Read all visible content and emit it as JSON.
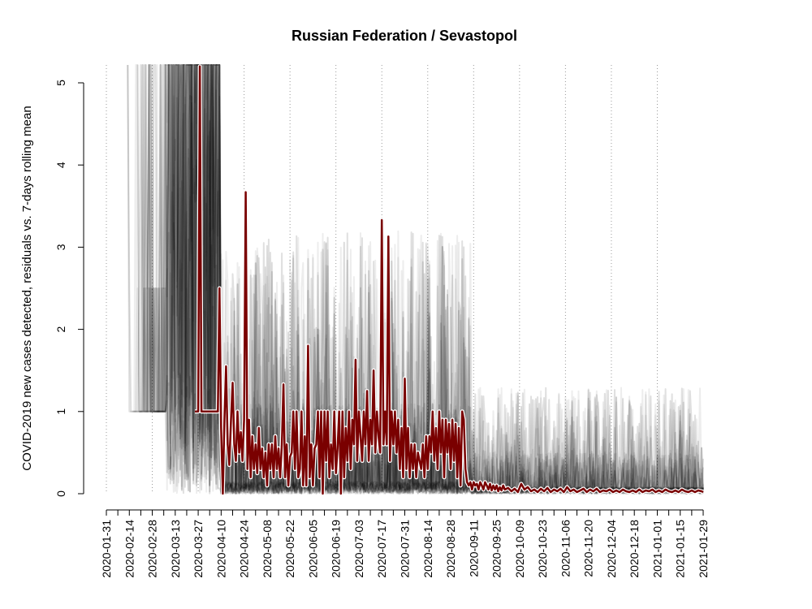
{
  "chart_data": {
    "type": "line",
    "title": "Russian Federation / Sevastopol",
    "xlabel": "",
    "ylabel": "COVID-2019 new cases detected, residuals vs. 7-days rolling mean",
    "x_range": [
      "2020-01-22",
      "2021-01-29"
    ],
    "ylim": [
      0,
      5
    ],
    "y_ticks": [
      0,
      1,
      2,
      3,
      4,
      5
    ],
    "x_tick_labels": [
      "2020-01-31",
      "2020-02-14",
      "2020-02-28",
      "2020-03-13",
      "2020-03-27",
      "2020-04-10",
      "2020-04-24",
      "2020-05-08",
      "2020-05-22",
      "2020-06-05",
      "2020-06-19",
      "2020-07-03",
      "2020-07-17",
      "2020-07-31",
      "2020-08-14",
      "2020-08-28",
      "2020-09-11",
      "2020-09-25",
      "2020-10-09",
      "2020-10-23",
      "2020-11-06",
      "2020-11-20",
      "2020-12-04",
      "2020-12-18",
      "2021-01-01",
      "2021-01-15",
      "2021-01-29"
    ],
    "x_grid_dates": [
      "2020-01-31",
      "2020-02-28",
      "2020-03-27",
      "2020-04-24",
      "2020-05-22",
      "2020-06-19",
      "2020-07-17",
      "2020-08-14",
      "2020-09-11",
      "2020-10-09",
      "2020-11-06",
      "2020-12-04",
      "2021-01-01"
    ],
    "grid": "vertical dotted lines",
    "colors": {
      "highlight": "#7a0000",
      "halo": "#ffffff",
      "background_series": "#000000"
    },
    "highlight_series": {
      "points": [
        [
          "2020-03-25",
          1
        ],
        [
          "2020-03-26",
          1
        ],
        [
          "2020-03-27",
          1
        ],
        [
          "2020-03-28",
          5.2
        ],
        [
          "2020-03-29",
          1
        ],
        [
          "2020-03-30",
          1
        ],
        [
          "2020-03-31",
          1
        ],
        [
          "2020-04-01",
          1
        ],
        [
          "2020-04-02",
          1
        ],
        [
          "2020-04-03",
          1
        ],
        [
          "2020-04-04",
          1
        ],
        [
          "2020-04-05",
          1
        ],
        [
          "2020-04-06",
          1
        ],
        [
          "2020-04-07",
          1
        ],
        [
          "2020-04-08",
          1
        ],
        [
          "2020-04-09",
          2.5
        ],
        [
          "2020-04-10",
          0.8
        ],
        [
          "2020-04-11",
          0
        ],
        [
          "2020-04-12",
          0.9
        ],
        [
          "2020-04-13",
          1.55
        ],
        [
          "2020-04-14",
          0.6
        ],
        [
          "2020-04-15",
          0.35
        ],
        [
          "2020-04-16",
          0.9
        ],
        [
          "2020-04-17",
          1.35
        ],
        [
          "2020-04-18",
          0.6
        ],
        [
          "2020-04-19",
          0.4
        ],
        [
          "2020-04-20",
          1.0
        ],
        [
          "2020-04-21",
          0.5
        ],
        [
          "2020-04-22",
          0.75
        ],
        [
          "2020-04-23",
          0.4
        ],
        [
          "2020-04-24",
          0.9
        ],
        [
          "2020-04-25",
          3.67
        ],
        [
          "2020-04-26",
          0.3
        ],
        [
          "2020-04-27",
          0.9
        ],
        [
          "2020-04-28",
          0.2
        ],
        [
          "2020-04-29",
          0.7
        ],
        [
          "2020-04-30",
          0.3
        ],
        [
          "2020-05-01",
          0.6
        ],
        [
          "2020-05-02",
          0.25
        ],
        [
          "2020-05-03",
          0.8
        ],
        [
          "2020-05-04",
          0.3
        ],
        [
          "2020-05-05",
          0.55
        ],
        [
          "2020-05-06",
          0.2
        ],
        [
          "2020-05-07",
          0.5
        ],
        [
          "2020-05-08",
          0.1
        ],
        [
          "2020-05-09",
          0.6
        ],
        [
          "2020-05-10",
          0.3
        ],
        [
          "2020-05-11",
          0.6
        ],
        [
          "2020-05-12",
          0.2
        ],
        [
          "2020-05-13",
          0.7
        ],
        [
          "2020-05-14",
          0.3
        ],
        [
          "2020-05-15",
          0.55
        ],
        [
          "2020-05-16",
          0.2
        ],
        [
          "2020-05-17",
          0.6
        ],
        [
          "2020-05-18",
          1.33
        ],
        [
          "2020-05-19",
          0.2
        ],
        [
          "2020-05-20",
          0.6
        ],
        [
          "2020-05-21",
          0.1
        ],
        [
          "2020-05-22",
          0.45
        ],
        [
          "2020-05-23",
          0.5
        ],
        [
          "2020-05-24",
          1.0
        ],
        [
          "2020-05-25",
          0.3
        ],
        [
          "2020-05-26",
          1.0
        ],
        [
          "2020-05-27",
          0.2
        ],
        [
          "2020-05-28",
          0.3
        ],
        [
          "2020-05-29",
          1.0
        ],
        [
          "2020-05-30",
          0.1
        ],
        [
          "2020-05-31",
          0.7
        ],
        [
          "2020-06-01",
          0.1
        ],
        [
          "2020-06-02",
          1.8
        ],
        [
          "2020-06-03",
          0.2
        ],
        [
          "2020-06-04",
          0.6
        ],
        [
          "2020-06-05",
          0.1
        ],
        [
          "2020-06-06",
          0.55
        ],
        [
          "2020-06-07",
          0.6
        ],
        [
          "2020-06-08",
          1.0
        ],
        [
          "2020-06-09",
          0.2
        ],
        [
          "2020-06-10",
          1.0
        ],
        [
          "2020-06-11",
          0.0
        ],
        [
          "2020-06-12",
          1.0
        ],
        [
          "2020-06-13",
          0.4
        ],
        [
          "2020-06-14",
          1.0
        ],
        [
          "2020-06-15",
          0.2
        ],
        [
          "2020-06-16",
          0.6
        ],
        [
          "2020-06-17",
          0.3
        ],
        [
          "2020-06-18",
          1.0
        ],
        [
          "2020-06-19",
          0.25
        ],
        [
          "2020-06-20",
          0.55
        ],
        [
          "2020-06-21",
          1.0
        ],
        [
          "2020-06-22",
          0.0
        ],
        [
          "2020-06-23",
          1.0
        ],
        [
          "2020-06-24",
          0.2
        ],
        [
          "2020-06-25",
          0.8
        ],
        [
          "2020-06-26",
          0.4
        ],
        [
          "2020-06-27",
          1.0
        ],
        [
          "2020-06-28",
          0.3
        ],
        [
          "2020-06-29",
          0.9
        ],
        [
          "2020-06-30",
          0.6
        ],
        [
          "2020-07-01",
          1.63
        ],
        [
          "2020-07-02",
          0.4
        ],
        [
          "2020-07-03",
          1.0
        ],
        [
          "2020-07-04",
          0.7
        ],
        [
          "2020-07-05",
          0.4
        ],
        [
          "2020-07-06",
          1.0
        ],
        [
          "2020-07-07",
          0.6
        ],
        [
          "2020-07-08",
          1.25
        ],
        [
          "2020-07-09",
          0.4
        ],
        [
          "2020-07-10",
          0.9
        ],
        [
          "2020-07-11",
          0.6
        ],
        [
          "2020-07-12",
          1.5
        ],
        [
          "2020-07-13",
          0.5
        ],
        [
          "2020-07-14",
          1.0
        ],
        [
          "2020-07-15",
          0.7
        ],
        [
          "2020-07-16",
          0.5
        ],
        [
          "2020-07-17",
          3.33
        ],
        [
          "2020-07-18",
          0.6
        ],
        [
          "2020-07-19",
          1.0
        ],
        [
          "2020-07-20",
          0.6
        ],
        [
          "2020-07-21",
          3.13
        ],
        [
          "2020-07-22",
          0.4
        ],
        [
          "2020-07-23",
          1.0
        ],
        [
          "2020-07-24",
          0.6
        ],
        [
          "2020-07-25",
          1.0
        ],
        [
          "2020-07-26",
          0.5
        ],
        [
          "2020-07-27",
          0.9
        ],
        [
          "2020-07-28",
          0.3
        ],
        [
          "2020-07-29",
          0.8
        ],
        [
          "2020-07-30",
          0.2
        ],
        [
          "2020-07-31",
          1.4
        ],
        [
          "2020-08-01",
          0.3
        ],
        [
          "2020-08-02",
          0.8
        ],
        [
          "2020-08-03",
          0.2
        ],
        [
          "2020-08-04",
          0.6
        ],
        [
          "2020-08-05",
          0.3
        ],
        [
          "2020-08-06",
          0.6
        ],
        [
          "2020-08-07",
          0.2
        ],
        [
          "2020-08-08",
          0.5
        ],
        [
          "2020-08-09",
          0.4
        ],
        [
          "2020-08-10",
          0.3
        ],
        [
          "2020-08-11",
          0.6
        ],
        [
          "2020-08-12",
          0.2
        ],
        [
          "2020-08-13",
          0.7
        ],
        [
          "2020-08-14",
          0.3
        ],
        [
          "2020-08-15",
          0.7
        ],
        [
          "2020-08-16",
          0.5
        ],
        [
          "2020-08-17",
          1.0
        ],
        [
          "2020-08-18",
          0.4
        ],
        [
          "2020-08-19",
          0.8
        ],
        [
          "2020-08-20",
          0.3
        ],
        [
          "2020-08-21",
          1.0
        ],
        [
          "2020-08-22",
          0.5
        ],
        [
          "2020-08-23",
          0.9
        ],
        [
          "2020-08-24",
          0.2
        ],
        [
          "2020-08-25",
          0.9
        ],
        [
          "2020-08-26",
          0.5
        ],
        [
          "2020-08-27",
          0.85
        ],
        [
          "2020-08-28",
          0.3
        ],
        [
          "2020-08-29",
          0.9
        ],
        [
          "2020-08-30",
          0.4
        ],
        [
          "2020-08-31",
          0.85
        ],
        [
          "2020-09-01",
          0.2
        ],
        [
          "2020-09-02",
          0.8
        ],
        [
          "2020-09-03",
          0.1
        ],
        [
          "2020-09-04",
          1.0
        ],
        [
          "2020-09-05",
          0.9
        ],
        [
          "2020-09-06",
          0.3
        ],
        [
          "2020-09-07",
          0.14
        ],
        [
          "2020-09-08",
          0.1
        ],
        [
          "2020-09-09",
          0.14
        ],
        [
          "2020-09-10",
          0.05
        ],
        [
          "2020-09-11",
          0.14
        ],
        [
          "2020-09-12",
          0.1
        ],
        [
          "2020-09-13",
          0.12
        ],
        [
          "2020-09-14",
          0.05
        ],
        [
          "2020-09-15",
          0.14
        ],
        [
          "2020-09-16",
          0.1
        ],
        [
          "2020-09-17",
          0.05
        ],
        [
          "2020-09-18",
          0.14
        ],
        [
          "2020-09-19",
          0.1
        ],
        [
          "2020-09-20",
          0.05
        ],
        [
          "2020-09-21",
          0.12
        ],
        [
          "2020-09-22",
          0.04
        ],
        [
          "2020-09-23",
          0.1
        ],
        [
          "2020-09-24",
          0.05
        ],
        [
          "2020-09-25",
          0.1
        ],
        [
          "2020-09-26",
          0.03
        ],
        [
          "2020-09-27",
          0.08
        ],
        [
          "2020-09-28",
          0.04
        ],
        [
          "2020-09-29",
          0.1
        ],
        [
          "2020-09-30",
          0.05
        ],
        [
          "2020-10-02",
          0.07
        ],
        [
          "2020-10-04",
          0.03
        ],
        [
          "2020-10-06",
          0.06
        ],
        [
          "2020-10-08",
          0.02
        ],
        [
          "2020-10-10",
          0.12
        ],
        [
          "2020-10-12",
          0.05
        ],
        [
          "2020-10-14",
          0.08
        ],
        [
          "2020-10-16",
          0.03
        ],
        [
          "2020-10-18",
          0.05
        ],
        [
          "2020-10-20",
          0.02
        ],
        [
          "2020-10-22",
          0.06
        ],
        [
          "2020-10-24",
          0.03
        ],
        [
          "2020-10-26",
          0.07
        ],
        [
          "2020-10-28",
          0.02
        ],
        [
          "2020-10-30",
          0.05
        ],
        [
          "2020-11-01",
          0.03
        ],
        [
          "2020-11-03",
          0.06
        ],
        [
          "2020-11-05",
          0.02
        ],
        [
          "2020-11-07",
          0.08
        ],
        [
          "2020-11-09",
          0.03
        ],
        [
          "2020-11-11",
          0.05
        ],
        [
          "2020-11-13",
          0.02
        ],
        [
          "2020-11-15",
          0.04
        ],
        [
          "2020-11-17",
          0.06
        ],
        [
          "2020-11-19",
          0.02
        ],
        [
          "2020-11-21",
          0.05
        ],
        [
          "2020-11-23",
          0.03
        ],
        [
          "2020-11-25",
          0.06
        ],
        [
          "2020-11-27",
          0.02
        ],
        [
          "2020-11-29",
          0.04
        ],
        [
          "2020-12-01",
          0.03
        ],
        [
          "2020-12-03",
          0.05
        ],
        [
          "2020-12-05",
          0.02
        ],
        [
          "2020-12-07",
          0.04
        ],
        [
          "2020-12-09",
          0.02
        ],
        [
          "2020-12-11",
          0.05
        ],
        [
          "2020-12-13",
          0.03
        ],
        [
          "2020-12-15",
          0.02
        ],
        [
          "2020-12-17",
          0.04
        ],
        [
          "2020-12-19",
          0.02
        ],
        [
          "2020-12-21",
          0.05
        ],
        [
          "2020-12-23",
          0.02
        ],
        [
          "2020-12-25",
          0.04
        ],
        [
          "2020-12-27",
          0.03
        ],
        [
          "2020-12-29",
          0.05
        ],
        [
          "2020-12-31",
          0.02
        ],
        [
          "2021-01-02",
          0.04
        ],
        [
          "2021-01-04",
          0.02
        ],
        [
          "2021-01-06",
          0.05
        ],
        [
          "2021-01-08",
          0.03
        ],
        [
          "2021-01-10",
          0.02
        ],
        [
          "2021-01-12",
          0.04
        ],
        [
          "2021-01-14",
          0.02
        ],
        [
          "2021-01-16",
          0.05
        ],
        [
          "2021-01-18",
          0.03
        ],
        [
          "2021-01-20",
          0.02
        ],
        [
          "2021-01-22",
          0.04
        ],
        [
          "2021-01-24",
          0.02
        ],
        [
          "2021-01-26",
          0.04
        ],
        [
          "2021-01-28",
          0.03
        ],
        [
          "2021-01-29",
          0.02
        ]
      ]
    }
  }
}
